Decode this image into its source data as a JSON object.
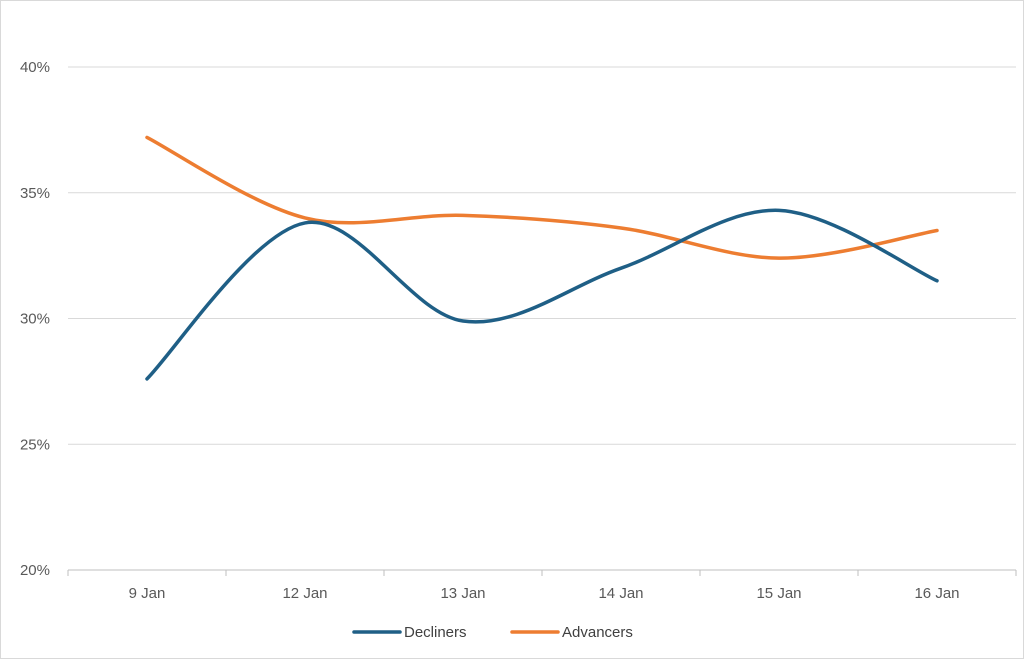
{
  "chart_data": {
    "type": "line",
    "title": "",
    "xlabel": "",
    "ylabel": "",
    "categories": [
      "9 Jan",
      "12 Jan",
      "13 Jan",
      "14 Jan",
      "15 Jan",
      "16 Jan"
    ],
    "ylim": [
      20,
      40
    ],
    "yticks": [
      20,
      25,
      30,
      35,
      40
    ],
    "ytick_labels": [
      "20%",
      "25%",
      "30%",
      "35%",
      "40%"
    ],
    "grid": true,
    "smooth": true,
    "legend_position": "bottom",
    "series": [
      {
        "name": "Decliners",
        "color": "#1f5f86",
        "values": [
          27.6,
          33.8,
          29.9,
          32.0,
          34.3,
          31.5
        ]
      },
      {
        "name": "Advancers",
        "color": "#ed7d31",
        "values": [
          37.2,
          34.0,
          34.1,
          33.6,
          32.4,
          33.5
        ]
      }
    ]
  }
}
